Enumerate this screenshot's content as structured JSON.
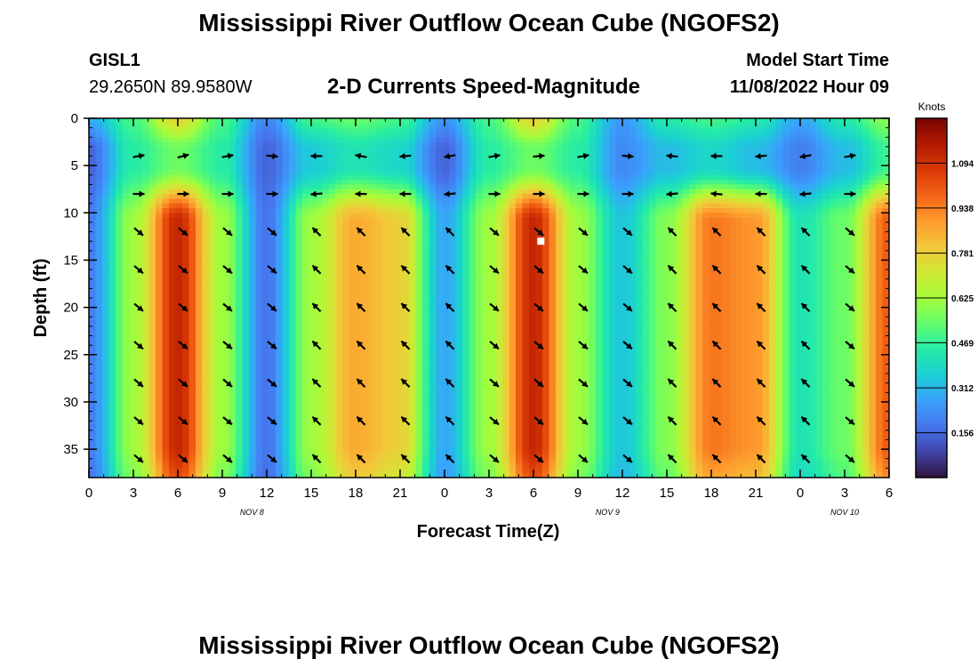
{
  "header": {
    "title": "Mississippi River Outflow Ocean Cube (NGOFS2)",
    "title_repeat": "Mississippi River Outflow Ocean Cube (NGOFS2)",
    "station": "GISL1",
    "coords": "29.2650N  89.9580W",
    "model_start_label": "Model Start Time",
    "model_start_value": "11/08/2022 Hour 09"
  },
  "chart_data": {
    "type": "heatmap",
    "title": "2-D Currents Speed-Magnitude",
    "xlabel": "Forecast Time(Z)",
    "ylabel": "Depth (ft)",
    "colorbar_label": "Knots",
    "x_tick_labels": [
      "0",
      "3",
      "6",
      "9",
      "12",
      "15",
      "18",
      "21",
      "0",
      "3",
      "6",
      "9",
      "12",
      "15",
      "18",
      "21",
      "0",
      "3",
      "6"
    ],
    "x_range_hours": [
      0,
      54
    ],
    "date_labels": [
      {
        "label": "NOV 8",
        "hour": 11
      },
      {
        "label": "NOV 9",
        "hour": 35
      },
      {
        "label": "NOV 10",
        "hour": 51
      }
    ],
    "y_ticks": [
      0,
      5,
      10,
      15,
      20,
      25,
      30,
      35
    ],
    "y_range": [
      0,
      38
    ],
    "colorbar_ticks": [
      0.156,
      0.312,
      0.469,
      0.625,
      0.781,
      0.938,
      1.094
    ],
    "colorbar_range": [
      0,
      1.25
    ],
    "colormap": [
      "#30123b",
      "#4145ab",
      "#4675ed",
      "#39a2fc",
      "#1bcfd4",
      "#24eca6",
      "#61fc6c",
      "#a4fc3b",
      "#d1e834",
      "#f3c63a",
      "#fe9b2d",
      "#f36315",
      "#d93806",
      "#b11901",
      "#7a0403"
    ],
    "speed_profile_knots": [
      {
        "hour": 0,
        "speed": 0.2
      },
      {
        "hour": 3,
        "speed": 0.62
      },
      {
        "hour": 6,
        "speed": 1.12
      },
      {
        "hour": 9,
        "speed": 0.62
      },
      {
        "hour": 12,
        "speed": 0.18
      },
      {
        "hour": 15,
        "speed": 0.62
      },
      {
        "hour": 18,
        "speed": 0.86
      },
      {
        "hour": 21,
        "speed": 0.78
      },
      {
        "hour": 24,
        "speed": 0.28
      },
      {
        "hour": 27,
        "speed": 0.62
      },
      {
        "hour": 30,
        "speed": 1.12
      },
      {
        "hour": 33,
        "speed": 0.62
      },
      {
        "hour": 36,
        "speed": 0.34
      },
      {
        "hour": 39,
        "speed": 0.58
      },
      {
        "hour": 42,
        "speed": 0.95
      },
      {
        "hour": 45,
        "speed": 0.9
      },
      {
        "hour": 48,
        "speed": 0.42
      },
      {
        "hour": 51,
        "speed": 0.55
      },
      {
        "hour": 54,
        "speed": 1.0
      }
    ],
    "surface_speed_knots": [
      0.3,
      0.5,
      0.78,
      0.5,
      0.22,
      0.5,
      0.55,
      0.5,
      0.25,
      0.5,
      0.78,
      0.5,
      0.25,
      0.45,
      0.5,
      0.45,
      0.28,
      0.45,
      0.6
    ],
    "mid_speed_knots": [
      0.15,
      0.45,
      0.55,
      0.45,
      0.15,
      0.35,
      0.42,
      0.38,
      0.15,
      0.45,
      0.55,
      0.45,
      0.22,
      0.32,
      0.38,
      0.32,
      0.2,
      0.32,
      0.48
    ],
    "vector_depths_ft": [
      4,
      8,
      12,
      16,
      20,
      24,
      28,
      32,
      36
    ],
    "vector_hours": [
      3,
      6,
      9,
      12,
      15,
      18,
      21,
      24,
      27,
      30,
      33,
      36,
      39,
      42,
      45,
      48,
      51
    ],
    "vector_direction_deg": {
      "surface": [
        10,
        15,
        10,
        -5,
        180,
        170,
        185,
        190,
        10,
        5,
        10,
        -5,
        175,
        180,
        185,
        190,
        10
      ],
      "near_surface": [
        0,
        0,
        0,
        0,
        185,
        180,
        180,
        185,
        0,
        0,
        0,
        0,
        185,
        175,
        180,
        185,
        0
      ],
      "deep": [
        -40,
        -40,
        -40,
        -40,
        135,
        135,
        135,
        135,
        -40,
        -40,
        -40,
        -40,
        135,
        135,
        135,
        135,
        -40
      ]
    },
    "marker": {
      "hour": 30.5,
      "depth_ft": 13
    }
  }
}
